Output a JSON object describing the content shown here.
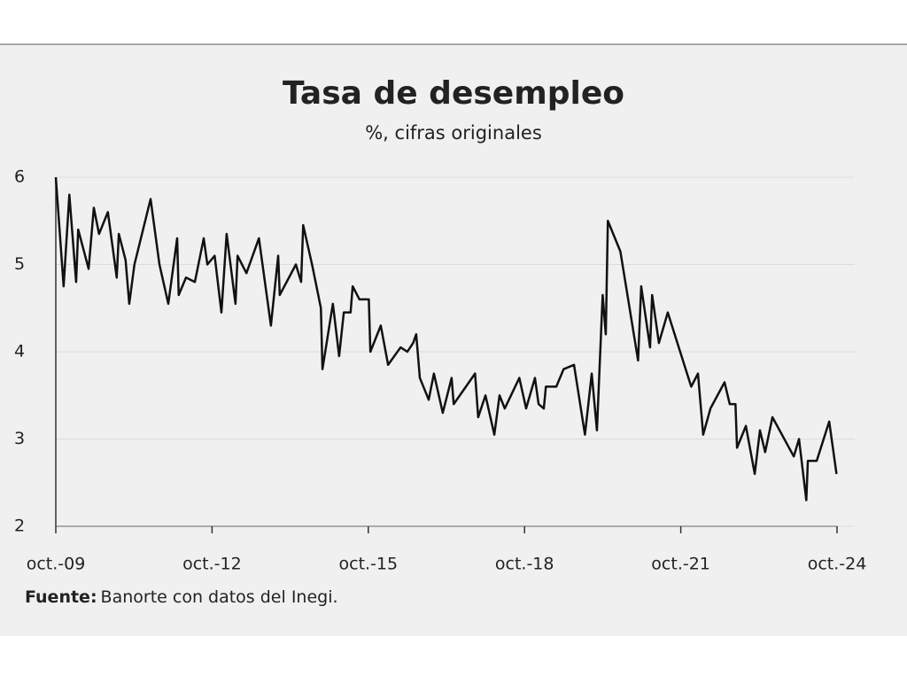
{
  "chart_data": {
    "type": "line",
    "title": "Tasa de desempleo",
    "subtitle": "%, cifras originales",
    "source_label": "Fuente:",
    "source_text": "Banorte con datos del Inegi.",
    "x": [
      2009.75,
      2009.9,
      2010.01,
      2010.14,
      2010.18,
      2010.38,
      2010.48,
      2010.58,
      2010.75,
      2010.92,
      2010.96,
      2011.09,
      2011.16,
      2011.26,
      2011.57,
      2011.74,
      2011.91,
      2012.08,
      2012.11,
      2012.25,
      2012.42,
      2012.59,
      2012.66,
      2012.8,
      2012.93,
      2013.03,
      2013.2,
      2013.24,
      2013.41,
      2013.65,
      2013.88,
      2014.02,
      2014.05,
      2014.36,
      2014.46,
      2014.5,
      2014.67,
      2014.84,
      2014.87,
      2015.07,
      2015.19,
      2015.28,
      2015.41,
      2015.45,
      2015.58,
      2015.76,
      2015.79,
      2015.99,
      2016.13,
      2016.37,
      2016.5,
      2016.61,
      2016.67,
      2016.74,
      2016.91,
      2017.01,
      2017.18,
      2017.35,
      2017.39,
      2017.8,
      2017.86,
      2018.0,
      2018.17,
      2018.27,
      2018.37,
      2018.65,
      2018.78,
      2018.95,
      2019.02,
      2019.12,
      2019.16,
      2019.36,
      2019.5,
      2019.7,
      2019.91,
      2020.04,
      2020.14,
      2020.25,
      2020.31,
      2020.35,
      2020.59,
      2020.93,
      2020.99,
      2021.16,
      2021.2,
      2021.33,
      2021.5,
      2021.95,
      2022.08,
      2022.18,
      2022.32,
      2022.59,
      2022.69,
      2022.8,
      2022.83,
      2023.0,
      2023.17,
      2023.27,
      2023.37,
      2023.51,
      2023.92,
      2024.02,
      2024.16,
      2024.19,
      2024.36,
      2024.6,
      2024.74
    ],
    "series": [
      {
        "name": "Tasa de desempleo",
        "color": "#111111",
        "values": [
          6.0,
          4.75,
          5.8,
          4.8,
          5.4,
          4.95,
          5.65,
          5.35,
          5.6,
          4.85,
          5.35,
          5.05,
          4.55,
          5.0,
          5.75,
          5.0,
          4.55,
          5.3,
          4.65,
          4.85,
          4.8,
          5.3,
          5.0,
          5.1,
          4.45,
          5.35,
          4.55,
          5.1,
          4.9,
          5.3,
          4.3,
          5.1,
          4.65,
          5.0,
          4.8,
          5.45,
          5.0,
          4.5,
          3.8,
          4.55,
          3.95,
          4.45,
          4.45,
          4.75,
          4.6,
          4.6,
          4.0,
          4.3,
          3.85,
          4.05,
          4.0,
          4.1,
          4.2,
          3.7,
          3.45,
          3.75,
          3.3,
          3.7,
          3.4,
          3.75,
          3.25,
          3.5,
          3.05,
          3.5,
          3.35,
          3.7,
          3.35,
          3.7,
          3.4,
          3.35,
          3.6,
          3.6,
          3.8,
          3.85,
          3.05,
          3.75,
          3.1,
          4.65,
          4.2,
          5.5,
          5.15,
          3.9,
          4.75,
          4.05,
          4.65,
          4.1,
          4.45,
          3.6,
          3.75,
          3.05,
          3.35,
          3.65,
          3.4,
          3.4,
          2.9,
          3.15,
          2.6,
          3.1,
          2.85,
          3.25,
          2.8,
          3.0,
          2.3,
          2.75,
          2.75,
          3.2,
          2.6
        ]
      }
    ],
    "xlim": [
      2009.75,
      2024.75
    ],
    "xticks": [
      {
        "value": 2009.75,
        "label": "oct.-09"
      },
      {
        "value": 2012.75,
        "label": "oct.-12"
      },
      {
        "value": 2015.75,
        "label": "oct.-15"
      },
      {
        "value": 2018.75,
        "label": "oct.-18"
      },
      {
        "value": 2021.75,
        "label": "oct.-21"
      },
      {
        "value": 2024.75,
        "label": "oct.-24"
      }
    ],
    "ylim": [
      2,
      6
    ],
    "yticks": [
      2,
      3,
      4,
      5,
      6
    ],
    "grid": true
  }
}
